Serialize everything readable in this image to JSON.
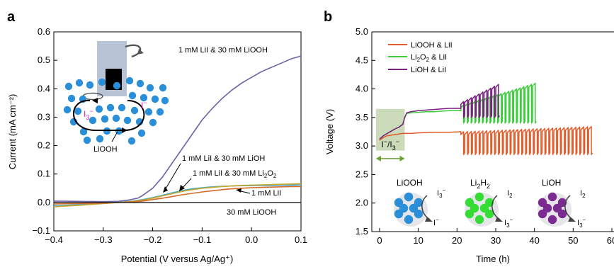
{
  "colors": {
    "lioohlii_a": "#6a62a8",
    "liohlii_a": "#3ea6c9",
    "li2o2lii_a": "#c8a52c",
    "lii_a": "#d46a28",
    "liooh_only_a": "#1a1a1a",
    "liooh_b": "#e25b2a",
    "li2o2_b": "#3ccc3c",
    "lioh_b": "#78217f",
    "ion_blue": "#2a8fd8",
    "ion_green": "#33dd33",
    "ion_purple": "#7a2a90",
    "magenta": "#e020d0"
  },
  "chart_data": [
    {
      "panel_label": "a",
      "type": "line",
      "xlabel": "Potential (V versus Ag/Ag⁺)",
      "ylabel": "Current (mA cm⁻²)",
      "xlim": [
        -0.4,
        0.1
      ],
      "ylim": [
        -0.1,
        0.6
      ],
      "xticks": [
        -0.4,
        -0.3,
        -0.2,
        -0.1,
        0.0,
        0.1
      ],
      "xtick_labels": [
        "−0.4",
        "−0.3",
        "−0.2",
        "−0.1",
        "0.0",
        "0.1"
      ],
      "yticks": [
        -0.1,
        0.0,
        0.1,
        0.2,
        0.3,
        0.4,
        0.5,
        0.6
      ],
      "ytick_labels": [
        "−0.1",
        "0.0",
        "0.1",
        "0.2",
        "0.3",
        "0.4",
        "0.5",
        "0.6"
      ],
      "annotations": {
        "lioohlii": "1 mM LiI & 30 mM LiOOH",
        "liohlii": "1 mM LiI & 30 mM LiOH",
        "li2o2lii_prefix": "1 mM LiI & 30 mM Li",
        "li2o2lii_sub": "2",
        "li2o2lii_o": "O",
        "li2o2lii_sub2": "2",
        "lii": "1 mM LiI",
        "liooh_only": "30 mM LiOOH",
        "inset_liooh": "LiOOH",
        "inset_i3": "I",
        "inset_i3_sub": "3",
        "inset_i3_sup": "−",
        "inset_i": "I",
        "inset_i_sup": "−"
      },
      "series": [
        {
          "key": "lioohlii",
          "x": [
            -0.4,
            -0.35,
            -0.3,
            -0.27,
            -0.25,
            -0.23,
            -0.22,
            -0.2,
            -0.18,
            -0.16,
            -0.14,
            -0.12,
            -0.1,
            -0.08,
            -0.06,
            -0.04,
            -0.02,
            0.0,
            0.02,
            0.04,
            0.06,
            0.08,
            0.1
          ],
          "y": [
            0.005,
            0.004,
            0.003,
            0.004,
            0.008,
            0.015,
            0.025,
            0.05,
            0.09,
            0.14,
            0.19,
            0.24,
            0.29,
            0.33,
            0.365,
            0.395,
            0.42,
            0.44,
            0.46,
            0.475,
            0.49,
            0.505,
            0.515
          ]
        },
        {
          "key": "liohlii",
          "x": [
            -0.4,
            -0.35,
            -0.3,
            -0.27,
            -0.24,
            -0.22,
            -0.2,
            -0.18,
            -0.16,
            -0.14,
            -0.12,
            -0.1,
            -0.08,
            -0.06,
            -0.04,
            -0.02,
            0.0,
            0.02,
            0.04,
            0.06,
            0.08,
            0.1
          ],
          "y": [
            -0.012,
            -0.008,
            -0.003,
            0.001,
            0.005,
            0.01,
            0.017,
            0.025,
            0.034,
            0.042,
            0.048,
            0.052,
            0.055,
            0.057,
            0.058,
            0.059,
            0.059,
            0.06,
            0.06,
            0.061,
            0.061,
            0.062
          ]
        },
        {
          "key": "li2o2lii",
          "x": [
            -0.4,
            -0.35,
            -0.3,
            -0.27,
            -0.24,
            -0.22,
            -0.2,
            -0.18,
            -0.16,
            -0.14,
            -0.12,
            -0.1,
            -0.08,
            -0.06,
            -0.04,
            -0.02,
            0.0,
            0.02,
            0.04,
            0.06,
            0.08,
            0.1
          ],
          "y": [
            -0.015,
            -0.01,
            -0.004,
            0.0,
            0.004,
            0.008,
            0.015,
            0.023,
            0.031,
            0.039,
            0.045,
            0.05,
            0.053,
            0.056,
            0.058,
            0.06,
            0.061,
            0.062,
            0.063,
            0.064,
            0.065,
            0.066
          ]
        },
        {
          "key": "lii",
          "x": [
            -0.4,
            -0.35,
            -0.3,
            -0.27,
            -0.24,
            -0.22,
            -0.2,
            -0.18,
            -0.16,
            -0.14,
            -0.12,
            -0.1,
            -0.08,
            -0.06,
            -0.04,
            -0.02,
            0.0,
            0.02,
            0.04,
            0.06,
            0.08,
            0.1
          ],
          "y": [
            -0.005,
            -0.004,
            -0.002,
            0.0,
            0.002,
            0.005,
            0.01,
            0.015,
            0.021,
            0.027,
            0.032,
            0.037,
            0.041,
            0.045,
            0.048,
            0.05,
            0.052,
            0.053,
            0.054,
            0.055,
            0.056,
            0.056
          ]
        },
        {
          "key": "liooh_only",
          "x": [
            -0.4,
            0.1
          ],
          "y": [
            0.0,
            0.0
          ]
        }
      ]
    },
    {
      "panel_label": "b",
      "type": "line",
      "xlabel": "Time (h)",
      "ylabel": "Voltage (V)",
      "xlim": [
        -2,
        60
      ],
      "ylim": [
        1.5,
        5.0
      ],
      "xticks": [
        0,
        10,
        20,
        30,
        40,
        50,
        60
      ],
      "xtick_labels": [
        "0",
        "10",
        "20",
        "30",
        "40",
        "50",
        "60"
      ],
      "yticks": [
        1.5,
        2.0,
        2.5,
        3.0,
        3.5,
        4.0,
        4.5,
        5.0
      ],
      "ytick_labels": [
        "1.5",
        "2.0",
        "2.5",
        "3.0",
        "3.5",
        "4.0",
        "4.5",
        "5.0"
      ],
      "legend": {
        "placement": "top-left",
        "items": [
          {
            "key": "liooh_b",
            "label": "LiOOH & LiI",
            "main": "LiOOH & LiI",
            "sub": "",
            "rest": ""
          },
          {
            "key": "li2o2_b",
            "label": "Li2O2 & LiI",
            "main": "Li",
            "sub": "2",
            "mid": "O",
            "sub2": "2",
            "rest": " & LiI"
          },
          {
            "key": "lioh_b",
            "label": "LiOH & LiI",
            "main": "LiOH & LiI",
            "sub": "",
            "rest": ""
          }
        ]
      },
      "shaded_region": {
        "x": [
          0,
          6.5
        ],
        "label": "I⁻/I₃⁻",
        "label_main": "I",
        "label_sup": "−",
        "label_sep": "/I",
        "label_sub": "3",
        "label_sup2": "−"
      },
      "insets": [
        {
          "key": "liooh",
          "title": "LiOOH",
          "in": "I",
          "in_sub": "3",
          "in_sup": "−",
          "out": "I",
          "out_sub": "",
          "out_sup": "−"
        },
        {
          "key": "li2h2",
          "title_main": "Li",
          "title_sub": "2",
          "title_mid": "H",
          "title_sub2": "2",
          "in": "I",
          "in_sub": "2",
          "in_sup": "",
          "out": "I",
          "out_sub": "3",
          "out_sup": "−"
        },
        {
          "key": "lioh",
          "title": "LiOH",
          "in": "I",
          "in_sub": "2",
          "in_sup": "",
          "out": "I",
          "out_sub": "3",
          "out_sup": "−"
        }
      ],
      "series": [
        {
          "key": "liooh_b",
          "name": "LiOOH & LiI",
          "smooth": {
            "x": [
              0,
              1,
              2,
              4,
              6,
              8,
              10,
              14,
              18,
              21
            ],
            "y": [
              3.1,
              3.15,
              3.18,
              3.2,
              3.22,
              3.22,
              3.23,
              3.24,
              3.24,
              3.25
            ]
          },
          "cycles": {
            "x_start": 21,
            "x_end": 55,
            "count": 34,
            "top_start": 3.25,
            "top_end": 3.34,
            "bottom": 2.85
          }
        },
        {
          "key": "li2o2_b",
          "name": "Li2O2 & LiI",
          "smooth": {
            "x": [
              0,
              1,
              2,
              3,
              4,
              5,
              6,
              6.5,
              7,
              8,
              10,
              12,
              14,
              16,
              18,
              20,
              21
            ],
            "y": [
              3.12,
              3.18,
              3.22,
              3.26,
              3.3,
              3.33,
              3.38,
              3.5,
              3.57,
              3.58,
              3.59,
              3.6,
              3.6,
              3.61,
              3.62,
              3.62,
              3.62
            ]
          },
          "cycles": {
            "x_start": 21,
            "x_end": 40.5,
            "count": 20,
            "top_start": 3.72,
            "top_end": 4.1,
            "bottom": 3.4
          }
        },
        {
          "key": "lioh_b",
          "name": "LiOH & LiI",
          "smooth": {
            "x": [
              0,
              1,
              2,
              3,
              4,
              5,
              6,
              6.5,
              7,
              8,
              10,
              12,
              14,
              16,
              18,
              20,
              21
            ],
            "y": [
              3.12,
              3.18,
              3.22,
              3.26,
              3.3,
              3.33,
              3.38,
              3.5,
              3.58,
              3.6,
              3.62,
              3.63,
              3.64,
              3.65,
              3.66,
              3.66,
              3.66
            ]
          },
          "cycles": {
            "x_start": 21,
            "x_end": 31,
            "count": 10,
            "top_start": 3.78,
            "top_end": 4.08,
            "bottom": 3.5
          }
        }
      ]
    }
  ]
}
